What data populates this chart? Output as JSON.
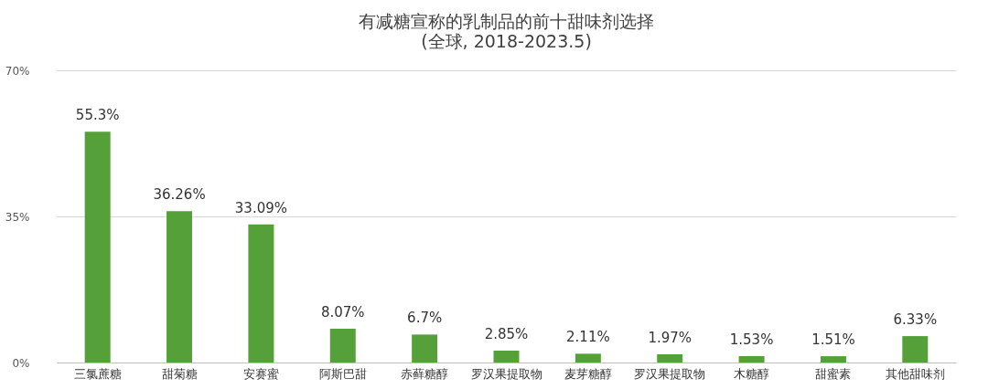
{
  "chart_data": {
    "type": "bar",
    "title": "有减糖宣称的乳制品的前十甜味剂选择",
    "subtitle": "(全球, 2018-2023.5)",
    "categories": [
      "三氯蔗糖",
      "甜菊糖",
      "安赛蜜",
      "阿斯巴甜",
      "赤藓糖醇",
      "罗汉果提取物",
      "麦芽糖醇",
      "罗汉果提取物",
      "木糖醇",
      "甜蜜素",
      "其他甜味剂"
    ],
    "values": [
      55.3,
      36.26,
      33.09,
      8.07,
      6.7,
      2.85,
      2.11,
      1.97,
      1.53,
      1.51,
      6.33
    ],
    "value_labels": [
      "55.3%",
      "36.26%",
      "33.09%",
      "8.07%",
      "6.7%",
      "2.85%",
      "2.11%",
      "1.97%",
      "1.53%",
      "1.51%",
      "6.33%"
    ],
    "color": "#56a03a",
    "ylim": [
      0,
      70
    ],
    "yticks": [
      {
        "value": 0,
        "label": "0%"
      },
      {
        "value": 35,
        "label": "35%"
      },
      {
        "value": 70,
        "label": "70%"
      }
    ],
    "grid": "y"
  }
}
